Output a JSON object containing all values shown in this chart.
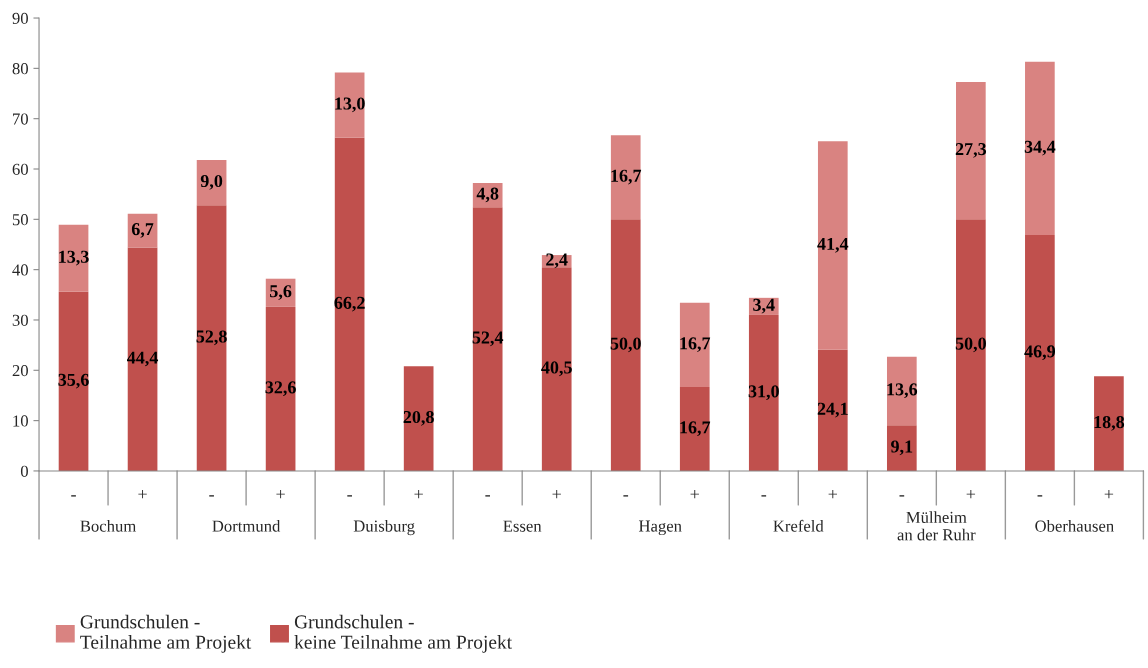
{
  "chart_data": {
    "type": "bar",
    "stacked": true,
    "categories": [
      "-",
      "+",
      "-",
      "+",
      "-",
      "+",
      "-",
      "+",
      "-",
      "+",
      "-",
      "+",
      "-",
      "+",
      "-",
      "+"
    ],
    "annotations": [
      "Bochum",
      "Dortmund",
      "Duisburg",
      "Essen",
      "Hagen",
      "Krefeld",
      "Mülheim\nan der Ruhr",
      "Oberhausen"
    ],
    "series": [
      {
        "name": "Grundschulen -\nkeine Teilnahme am Projekt",
        "color": "#c0504d",
        "values": [
          35.6,
          44.4,
          52.8,
          32.6,
          66.2,
          20.8,
          52.4,
          40.5,
          50.0,
          16.7,
          31.0,
          24.1,
          9.1,
          50.0,
          46.9,
          18.8
        ],
        "value_labels": [
          "35,6",
          "44,4",
          "52,8",
          "32,6",
          "66,2",
          "20,8",
          "52,4",
          "40,5",
          "50,0",
          "16,7",
          "31,0",
          "24,1",
          "9,1",
          "50,0",
          "46,9",
          "18,8"
        ]
      },
      {
        "name": "Grundschulen -\nTeilnahme am Projekt",
        "color": "#d98381",
        "values": [
          13.3,
          6.7,
          9.0,
          5.6,
          13.0,
          null,
          4.8,
          2.4,
          16.7,
          16.7,
          3.4,
          41.4,
          13.6,
          27.3,
          34.4,
          null
        ],
        "value_labels": [
          "13,3",
          "6,7",
          "9,0",
          "5,6",
          "13,0",
          null,
          "4,8",
          "2,4",
          "16,7",
          "16,7",
          "3,4",
          "41,4",
          "13,6",
          "27,3",
          "34,4",
          null
        ]
      }
    ],
    "ylim": [
      0,
      90
    ],
    "yticks": [
      0,
      10,
      20,
      30,
      40,
      50,
      60,
      70,
      80,
      90
    ],
    "grid": false,
    "legend": "bottom left"
  }
}
